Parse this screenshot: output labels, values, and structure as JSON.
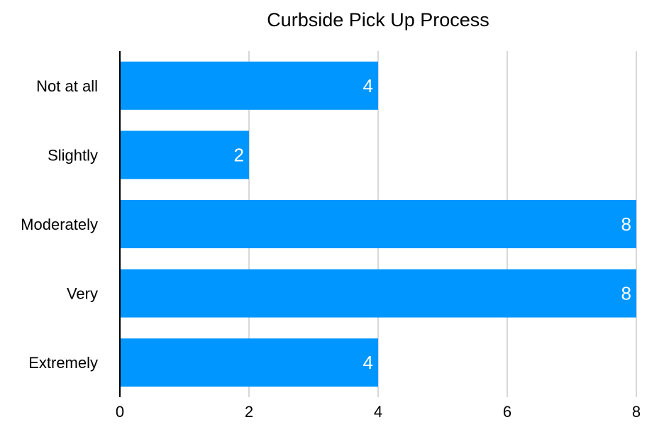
{
  "chart_data": {
    "type": "bar",
    "orientation": "horizontal",
    "title": "Curbside Pick Up Process",
    "xlabel": "",
    "ylabel": "",
    "categories": [
      "Not at all",
      "Slightly",
      "Moderately",
      "Very",
      "Extremely"
    ],
    "values": [
      4,
      2,
      8,
      8,
      4
    ],
    "xlim": [
      0,
      8
    ],
    "x_ticks": [
      0,
      2,
      4,
      6,
      8
    ],
    "grid": true,
    "data_labels": true,
    "legend": "none",
    "bar_color": "#0096FF",
    "label_color": "#FFFFFF",
    "grid_color": "#BFBFBF",
    "axis_color": "#000000"
  }
}
